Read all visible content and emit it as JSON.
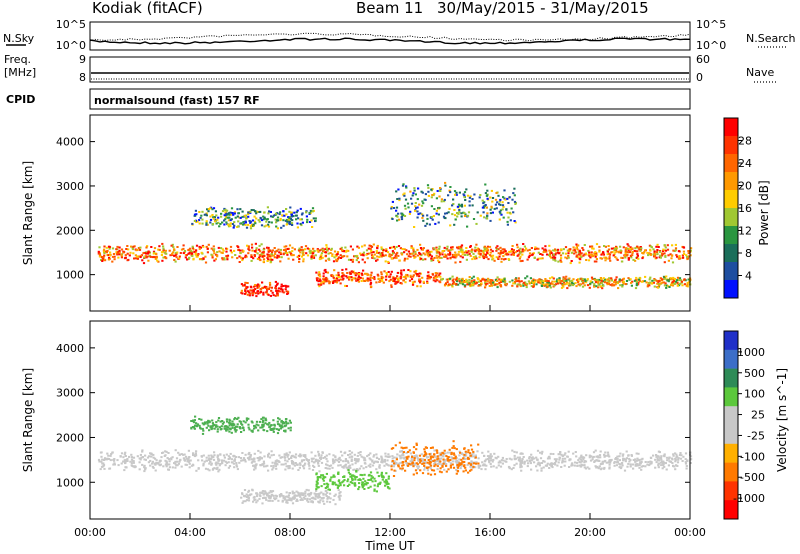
{
  "header": {
    "station": "Kodiak (fitACF)",
    "beam_label": "Beam 11",
    "date_range": "30/May/2015 - 31/May/2015"
  },
  "top_panels": {
    "nsky_label": "N.Sky",
    "nsearch_label": "N.Search",
    "noise_ticks_left": [
      "10^5",
      "10^0"
    ],
    "noise_ticks_right": [
      "10^5",
      "10^0"
    ],
    "freq_label_line1": "Freq.",
    "freq_label_line2": "[MHz]",
    "freq_ticks": [
      "9",
      "8"
    ],
    "nave_label": "Nave",
    "nave_ticks": [
      "60",
      "0"
    ],
    "cpid_label": "CPID",
    "cpid_value": "normalsound (fast) 157 RF"
  },
  "chart_data": [
    {
      "type": "heatmap",
      "panel": "power",
      "ylabel": "Slant Range [km]",
      "yticks": [
        "4000",
        "3000",
        "2000",
        "1000"
      ],
      "ytick_values": [
        4000,
        3000,
        2000,
        1000
      ],
      "ylim": [
        180,
        4600
      ],
      "xlim_hours": [
        0,
        24
      ],
      "colorbar": {
        "label": "Power [dB]",
        "ticks": [
          "28",
          "24",
          "20",
          "16",
          "12",
          "8",
          "4"
        ],
        "colors": [
          "#ff0000",
          "#ff3300",
          "#ff6600",
          "#ff9900",
          "#ffcc00",
          "#a0c832",
          "#2a9640",
          "#1a6e5a",
          "#1e4ea0",
          "#0010ff"
        ]
      },
      "bands": [
        {
          "t0": 0.3,
          "t1": 24,
          "r_center": 1500,
          "r_width": 320,
          "level": 0.72
        },
        {
          "t0": 6.0,
          "t1": 8.0,
          "r_center": 700,
          "r_width": 260,
          "level": 0.95
        },
        {
          "t0": 9.0,
          "t1": 14.0,
          "r_center": 950,
          "r_width": 300,
          "level": 0.8
        },
        {
          "t0": 14.0,
          "t1": 24.0,
          "r_center": 850,
          "r_width": 200,
          "level": 0.6
        },
        {
          "t0": 4.0,
          "t1": 9.0,
          "r_center": 2300,
          "r_width": 400,
          "level": 0.3
        },
        {
          "t0": 12.0,
          "t1": 17.0,
          "r_center": 2600,
          "r_width": 800,
          "level": 0.35
        }
      ]
    },
    {
      "type": "heatmap",
      "panel": "velocity",
      "ylabel": "Slant Range [km]",
      "yticks": [
        "4000",
        "3000",
        "2000",
        "1000"
      ],
      "ytick_values": [
        4000,
        3000,
        2000,
        1000
      ],
      "ylim": [
        180,
        4600
      ],
      "xlim_hours": [
        0,
        24
      ],
      "xticks": [
        "00:00",
        "04:00",
        "08:00",
        "12:00",
        "16:00",
        "20:00",
        "00:00"
      ],
      "xtick_values": [
        0,
        4,
        8,
        12,
        16,
        20,
        24
      ],
      "xlabel": "Time UT",
      "colorbar": {
        "label": "Velocity [m s^-1]",
        "ticks": [
          "1000",
          "500",
          "100",
          "25",
          "-25",
          "-100",
          "-500",
          "-1000"
        ],
        "colors": [
          "#2030c8",
          "#3c6ec8",
          "#2e8b57",
          "#5cc83c",
          "#c8c8c8",
          "#c8c8c8",
          "#ffb000",
          "#ff7a00",
          "#ff3300",
          "#ff0000"
        ]
      },
      "regions": [
        {
          "t0": 0.3,
          "t1": 24,
          "r_center": 1500,
          "r_width": 350,
          "color": "#c8c8c8"
        },
        {
          "t0": 6.0,
          "t1": 10.0,
          "r_center": 700,
          "r_width": 250,
          "color": "#c8c8c8"
        },
        {
          "t0": 9.0,
          "t1": 12.0,
          "r_center": 1050,
          "r_width": 350,
          "color": "#5cc83c"
        },
        {
          "t0": 12.0,
          "t1": 15.5,
          "r_center": 1550,
          "r_width": 600,
          "color": "#ff7a00"
        },
        {
          "t0": 4.0,
          "t1": 8.0,
          "r_center": 2300,
          "r_width": 300,
          "color": "#4caf50"
        }
      ]
    }
  ]
}
